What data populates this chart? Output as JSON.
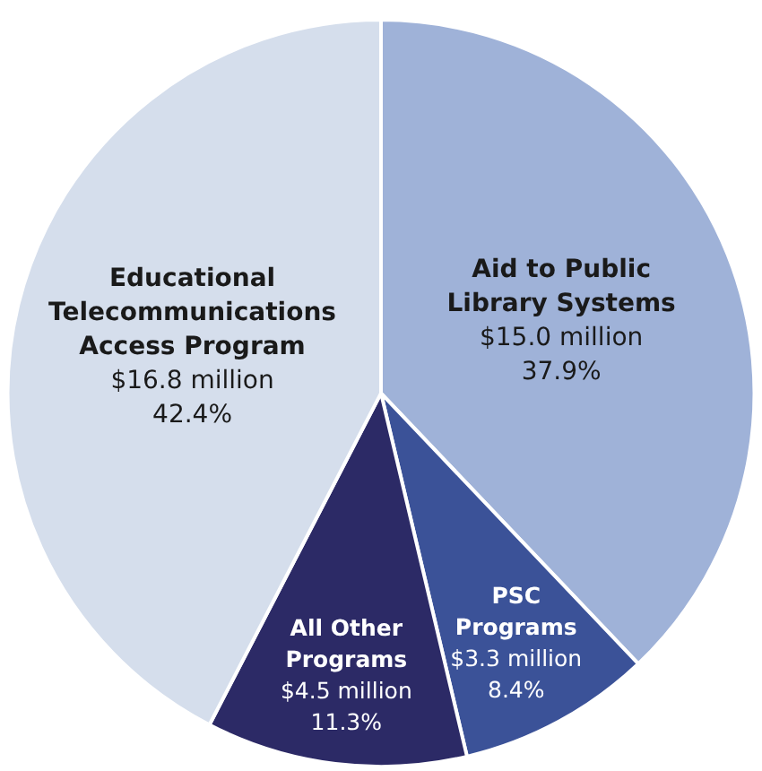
{
  "chart_data": {
    "type": "pie",
    "categories": [
      "Aid to Public Library Systems",
      "PSC Programs",
      "All Other Programs",
      "Educational Telecommunications Access Program"
    ],
    "values": [
      37.9,
      8.4,
      11.3,
      42.4
    ],
    "colors": [
      "#9fb2d8",
      "#3b5298",
      "#2c2a66",
      "#d5deec"
    ],
    "value_labels": [
      "$15.0 million\n37.9%",
      "$3.3 million\n8.4%",
      "$4.5 million\n11.3%",
      "$16.8 million\n42.4%"
    ]
  }
}
